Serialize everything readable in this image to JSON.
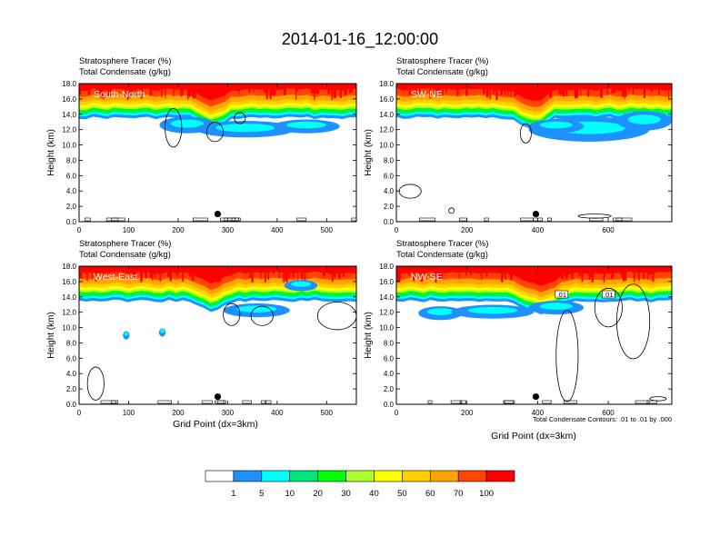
{
  "figure_title": "2014-01-16_12:00:00",
  "shared_x_label": "Grid Point (dx=3km)",
  "contour_note": "Total Condensate Contours: .01 to .01 by .000",
  "colors": {
    "white": "#ffffff",
    "blue": "#1e90ff",
    "cyan": "#00ffff",
    "sea_green": "#00e67a",
    "green": "#00ff00",
    "yellow_green": "#adff2f",
    "yellow": "#ffff00",
    "gold": "#ffd000",
    "orange": "#ffa500",
    "orange_red": "#ff4500",
    "red": "#ff0000"
  },
  "chart_data": [
    {
      "type": "heatmap",
      "panel": "South-North",
      "subtitle_1": "Stratosphere Tracer   (%)",
      "subtitle_2": "Total Condensate   (g/kg)",
      "ylabel": "Height (km)",
      "xlabel": "",
      "xlim": [
        0,
        560
      ],
      "ylim": [
        0,
        18
      ],
      "xticks": [
        "0",
        "100",
        "200",
        "300",
        "400",
        "500"
      ],
      "yticks": [
        "0.0",
        "2.0",
        "4.0",
        "6.0",
        "8.0",
        "10.0",
        "12.0",
        "14.0",
        "16.0",
        "18.0"
      ],
      "tropopause_height_km": 15.2,
      "dot_x": 280,
      "dot_height_km": 1.0,
      "contour_labels": []
    },
    {
      "type": "heatmap",
      "panel": "SW-NE",
      "subtitle_1": "Stratosphere Tracer   (%)",
      "subtitle_2": "Total Condensate   (g/kg)",
      "ylabel": "Height (km)",
      "xlabel": "",
      "xlim": [
        0,
        780
      ],
      "ylim": [
        0,
        18
      ],
      "xticks": [
        "0",
        "200",
        "400",
        "600"
      ],
      "yticks": [
        "0.0",
        "2.0",
        "4.0",
        "6.0",
        "8.0",
        "10.0",
        "12.0",
        "14.0",
        "16.0",
        "18.0"
      ],
      "tropopause_height_km": 15.2,
      "dot_x": 395,
      "dot_height_km": 1.0,
      "contour_labels": []
    },
    {
      "type": "heatmap",
      "panel": "West-East",
      "subtitle_1": "Stratosphere Tracer   (%)",
      "subtitle_2": "Total Condensate   (g/kg)",
      "ylabel": "Height (km)",
      "xlabel": "Grid Point (dx=3km)",
      "xlim": [
        0,
        560
      ],
      "ylim": [
        0,
        18
      ],
      "xticks": [
        "0",
        "100",
        "200",
        "300",
        "400",
        "500"
      ],
      "yticks": [
        "0.0",
        "2.0",
        "4.0",
        "6.0",
        "8.0",
        "10.0",
        "12.0",
        "14.0",
        "16.0",
        "18.0"
      ],
      "tropopause_height_km": 15.0,
      "dot_x": 280,
      "dot_height_km": 1.0,
      "contour_labels": []
    },
    {
      "type": "heatmap",
      "panel": "NW-SE",
      "subtitle_1": "Stratosphere Tracer   (%)",
      "subtitle_2": "Total Condensate   (g/kg)",
      "ylabel": "Height (km)",
      "xlabel": "Grid Point (dx=3km)",
      "xlim": [
        0,
        780
      ],
      "ylim": [
        0,
        18
      ],
      "xticks": [
        "0",
        "200",
        "400",
        "600"
      ],
      "yticks": [
        "0.0",
        "2.0",
        "4.0",
        "6.0",
        "8.0",
        "10.0",
        "12.0",
        "14.0",
        "16.0",
        "18.0"
      ],
      "tropopause_height_km": 14.9,
      "dot_x": 395,
      "dot_height_km": 1.0,
      "contour_labels": [
        ".01",
        ".01"
      ]
    }
  ],
  "colorbar": {
    "labels": [
      "1",
      "5",
      "10",
      "20",
      "30",
      "40",
      "50",
      "60",
      "70",
      "100"
    ]
  }
}
